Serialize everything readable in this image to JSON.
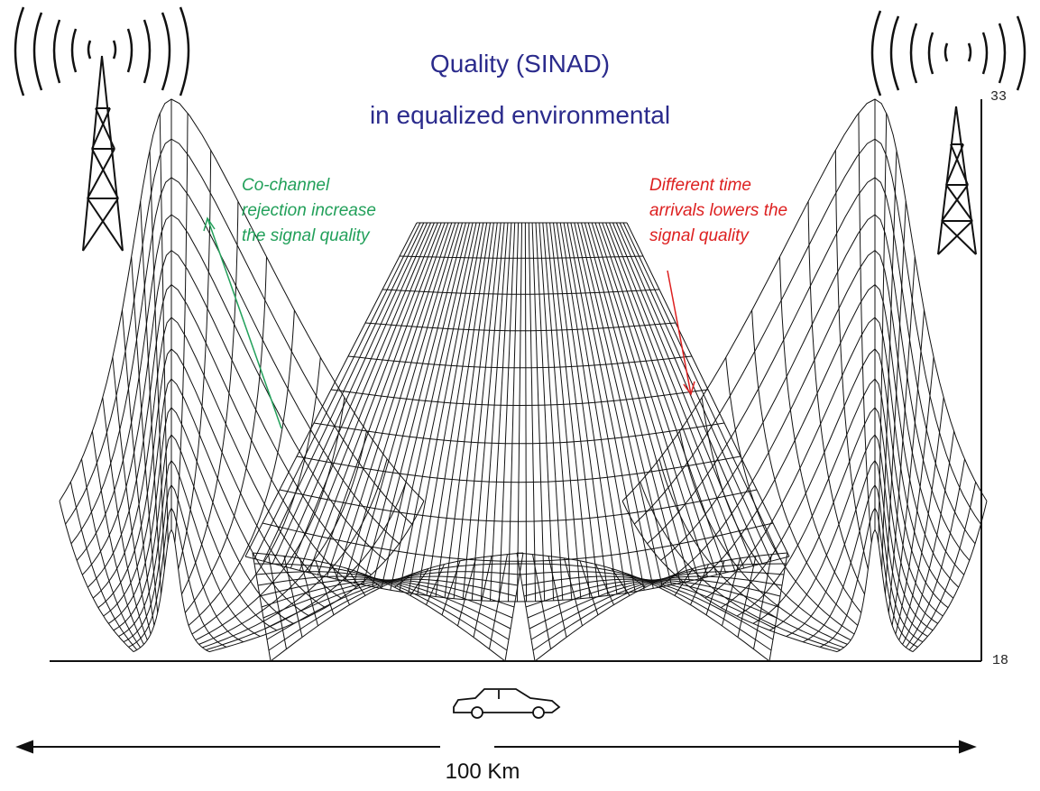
{
  "title": {
    "line1": "Quality (SINAD)",
    "line2": "in equalized environmental"
  },
  "annotations": {
    "left_note": "Co-channel\nrejection increase\nthe signal quality",
    "right_note": "Different time\narrivals lowers the\nsignal quality",
    "left_color": "#22a05a",
    "right_color": "#dd2020"
  },
  "axis": {
    "top_label": "33",
    "bottom_label": "18"
  },
  "distance_label": "100 Km",
  "icons": [
    "antenna-tower-icon",
    "radio-waves-icon",
    "car-icon",
    "double-arrow-icon"
  ]
}
